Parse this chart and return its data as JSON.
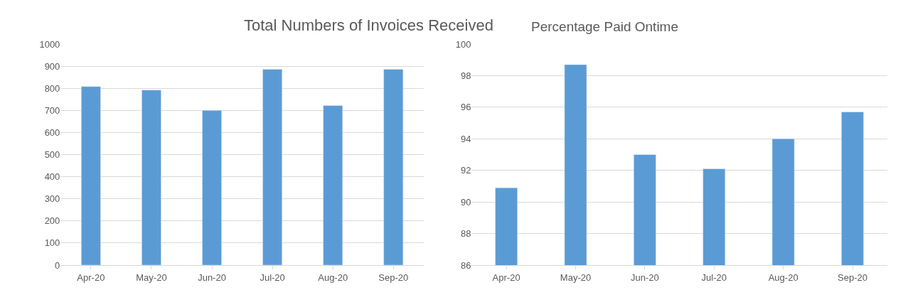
{
  "chart_data": [
    {
      "type": "bar",
      "title": "Total Numbers of Invoices Received",
      "categories": [
        "Apr-20",
        "May-20",
        "Jun-20",
        "Jul-20",
        "Aug-20",
        "Sep-20"
      ],
      "values": [
        808,
        792,
        700,
        886,
        722,
        886
      ],
      "color": "#5b9bd5",
      "ylim": [
        0,
        1000
      ],
      "yticks": [
        0,
        100,
        200,
        300,
        400,
        500,
        600,
        700,
        800,
        900,
        1000
      ],
      "grid": "y",
      "legend": false
    },
    {
      "type": "bar",
      "title": "Percentage Paid Ontime",
      "categories": [
        "Apr-20",
        "May-20",
        "Jun-20",
        "Jul-20",
        "Aug-20",
        "Sep-20"
      ],
      "values": [
        90.9,
        98.7,
        93.0,
        92.1,
        94.0,
        95.7
      ],
      "color": "#5b9bd5",
      "ylim": [
        86,
        100
      ],
      "yticks": [
        86,
        88,
        90,
        92,
        94,
        96,
        98,
        100
      ],
      "grid": "y",
      "legend": false
    }
  ]
}
